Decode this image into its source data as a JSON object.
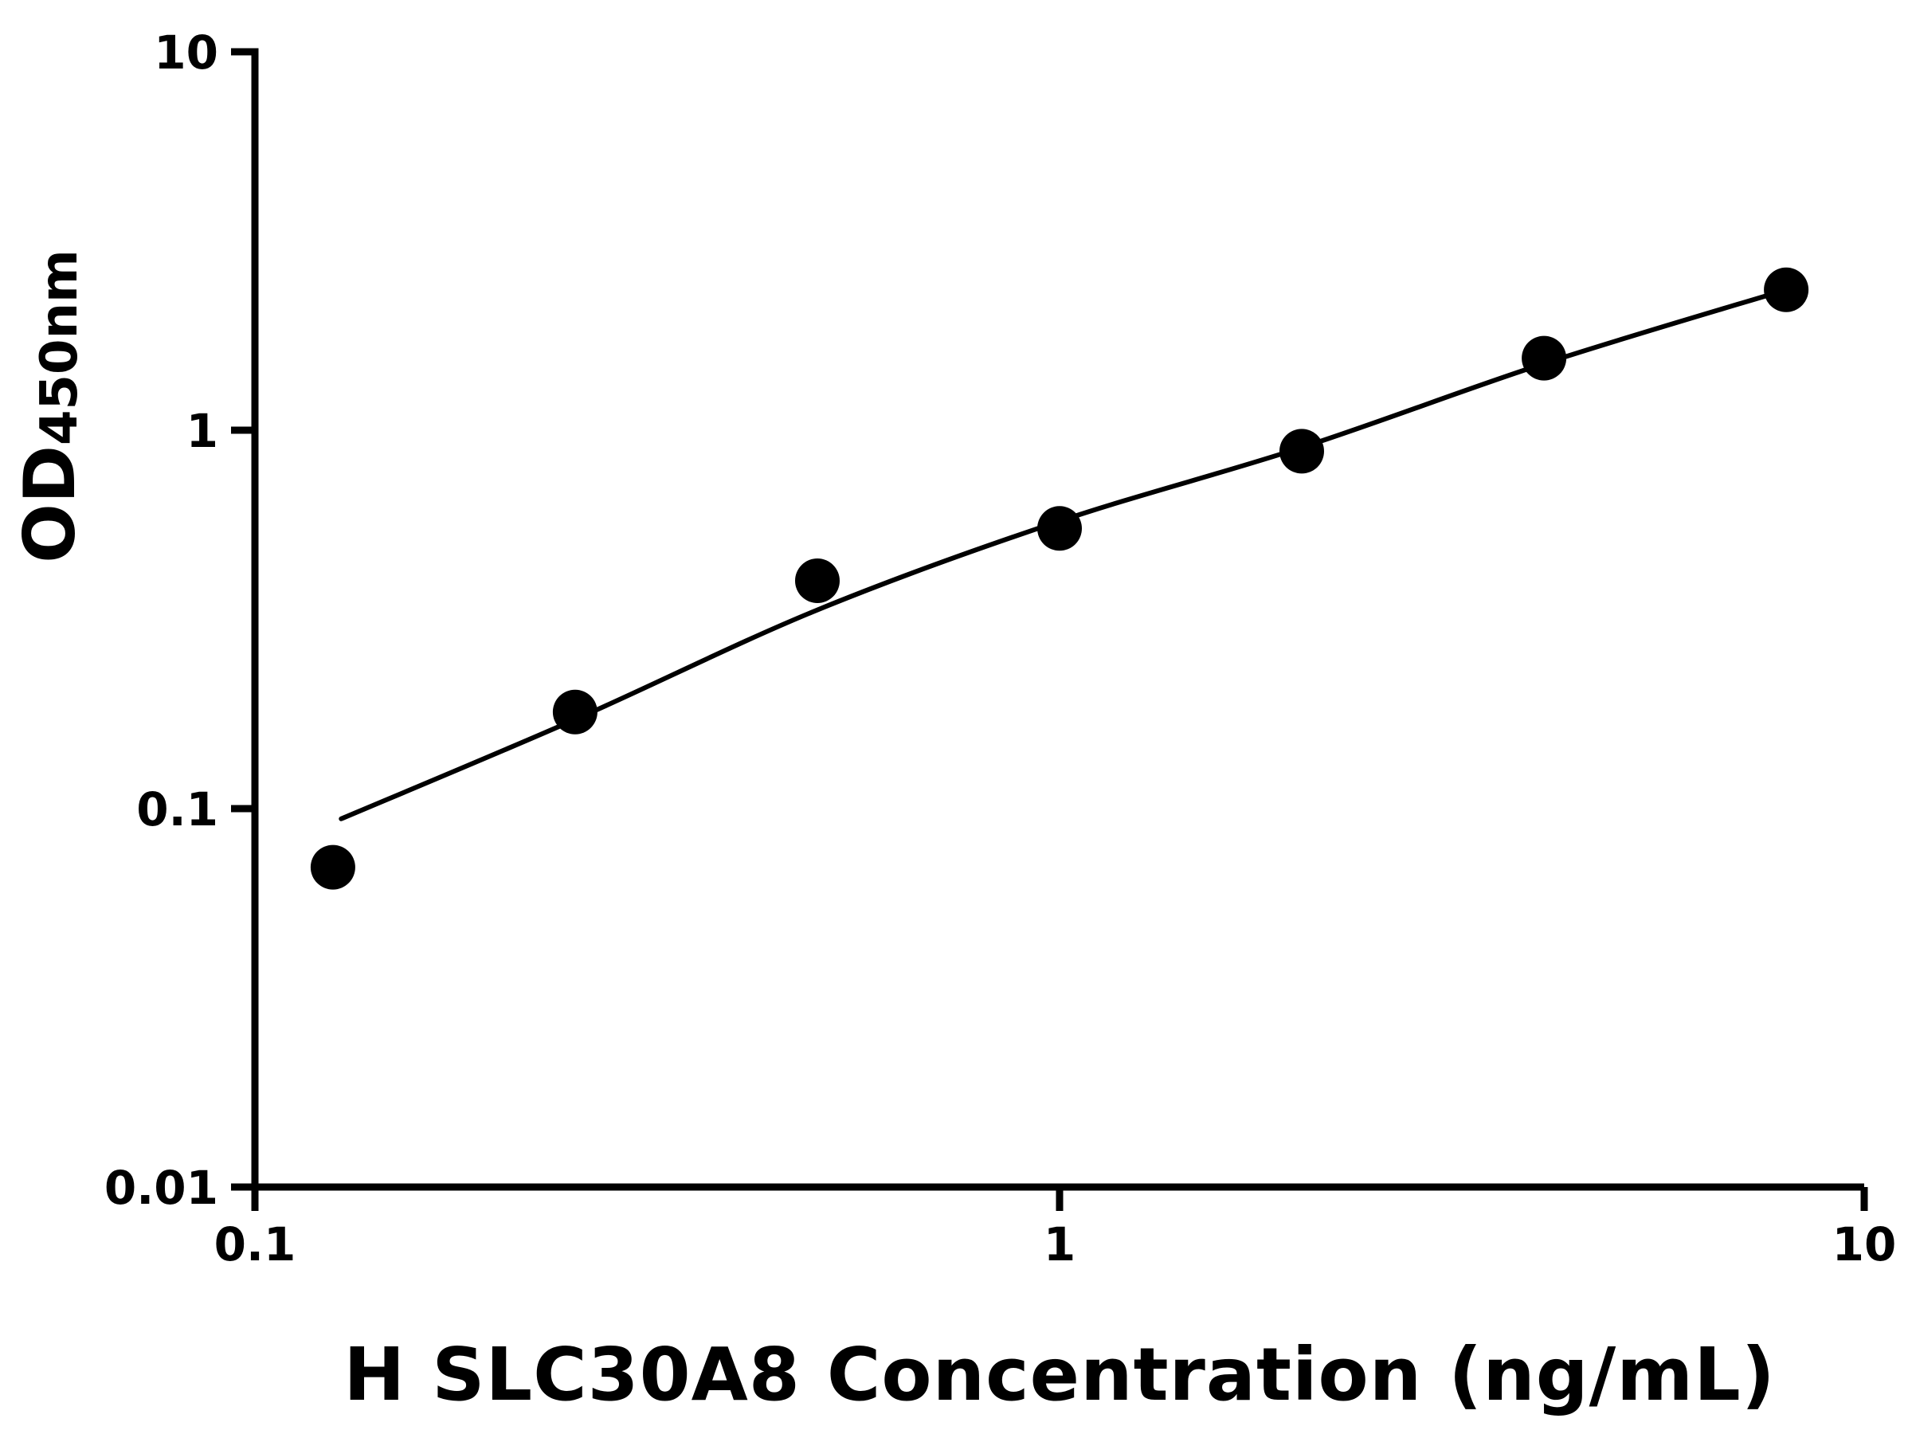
{
  "chart_data": {
    "type": "scatter",
    "title": "",
    "xlabel": "H SLC30A8 Concentration (ng/mL)",
    "ylabel_main": "OD",
    "ylabel_sub": "450nm",
    "x_scale": "log",
    "y_scale": "log",
    "xlim": [
      0.1,
      10
    ],
    "ylim": [
      0.01,
      10
    ],
    "x_ticks": [
      0.1,
      1,
      10
    ],
    "x_tick_labels": [
      "0.1",
      "1",
      "10"
    ],
    "y_ticks": [
      0.01,
      0.1,
      1,
      10
    ],
    "y_tick_labels": [
      "0.01",
      "0.1",
      "1",
      "10"
    ],
    "grid": false,
    "legend": null,
    "axis_color": "#000000",
    "point_color": "#000000",
    "line_color": "#000000",
    "points": [
      {
        "x": 0.125,
        "y": 0.07
      },
      {
        "x": 0.25,
        "y": 0.18
      },
      {
        "x": 0.5,
        "y": 0.4
      },
      {
        "x": 1,
        "y": 0.55
      },
      {
        "x": 2,
        "y": 0.88
      },
      {
        "x": 4,
        "y": 1.55
      },
      {
        "x": 8,
        "y": 2.35
      }
    ],
    "fit_curve": [
      {
        "x": 0.128,
        "y": 0.094
      },
      {
        "x": 0.25,
        "y": 0.172
      },
      {
        "x": 0.5,
        "y": 0.335
      },
      {
        "x": 1,
        "y": 0.575
      },
      {
        "x": 2,
        "y": 0.9
      },
      {
        "x": 4,
        "y": 1.5
      },
      {
        "x": 8,
        "y": 2.35
      }
    ]
  }
}
